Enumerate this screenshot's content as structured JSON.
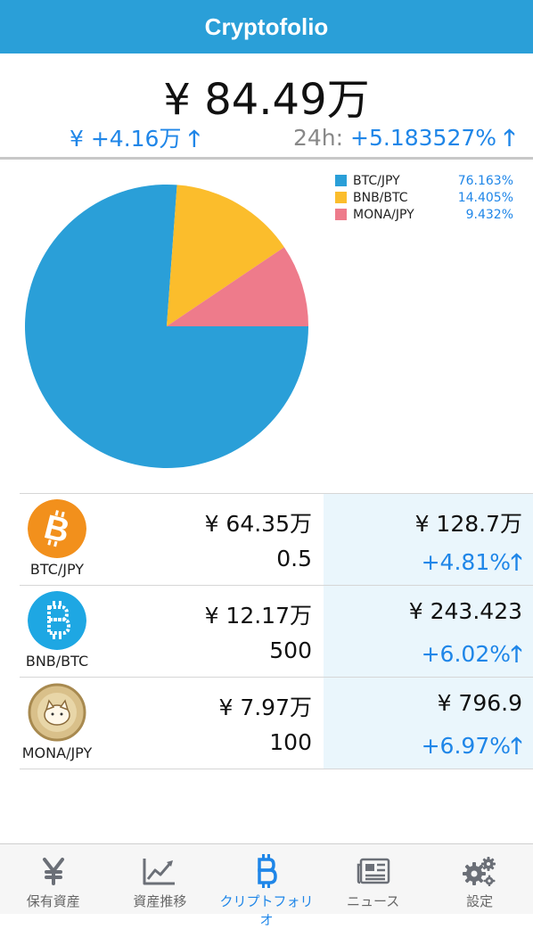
{
  "header": {
    "title": "Cryptofolio"
  },
  "summary": {
    "total": "¥ 84.49万",
    "change_amount": "¥ +4.16万",
    "change_label": "24h:",
    "change_percent": "+5.183527%",
    "up_arrow": "🡑"
  },
  "chart_data": {
    "type": "pie",
    "slices": [
      {
        "name": "BTC/JPY",
        "value": 76.163,
        "label": "76.163%",
        "color": "#2a9fd8"
      },
      {
        "name": "BNB/BTC",
        "value": 14.405,
        "label": "14.405%",
        "color": "#fbbd2c"
      },
      {
        "name": "MONA/JPY",
        "value": 9.432,
        "label": "9.432%",
        "color": "#ee7b8b"
      }
    ],
    "legend_position": "top-right"
  },
  "holdings": [
    {
      "pair": "BTC/JPY",
      "icon": "bitcoin-icon",
      "value": "¥ 64.35万",
      "amount": "0.5",
      "price": "¥ 128.7万",
      "change": "+4.81%",
      "color": "#f2901c"
    },
    {
      "pair": "BNB/BTC",
      "icon": "bitcoin-outline-icon",
      "value": "¥ 12.17万",
      "amount": "500",
      "price": "¥ 243.423",
      "change": "+6.02%",
      "color": "#1ea7e3"
    },
    {
      "pair": "MONA/JPY",
      "icon": "monacoin-icon",
      "value": "¥ 7.97万",
      "amount": "100",
      "price": "¥ 796.9",
      "change": "+6.97%",
      "color": "#c8a96a"
    }
  ],
  "tabs": [
    {
      "label": "保有資産",
      "icon": "yen-icon"
    },
    {
      "label": "資産推移",
      "icon": "chart-icon"
    },
    {
      "label": "クリプトフォリオ",
      "icon": "bitcoin-outline-icon",
      "active": true
    },
    {
      "label": "ニュース",
      "icon": "newspaper-icon"
    },
    {
      "label": "設定",
      "icon": "gears-icon"
    }
  ]
}
